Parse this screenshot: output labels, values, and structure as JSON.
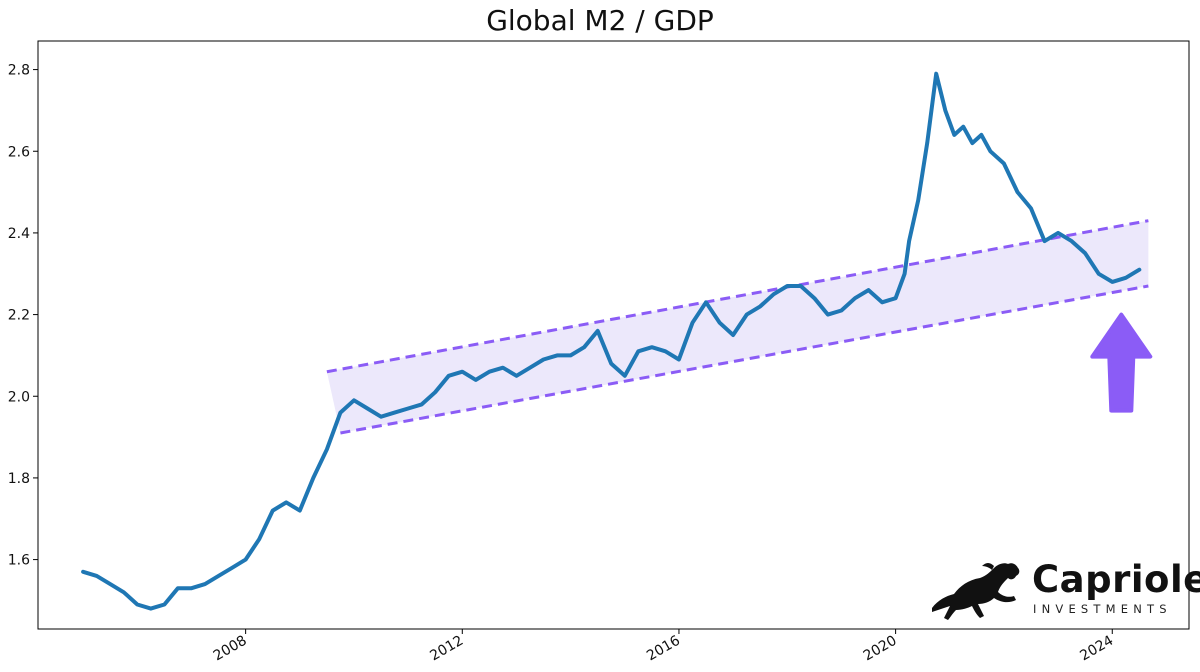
{
  "chart_data": {
    "type": "line",
    "title": "Global M2 / GDP",
    "xlabel": "",
    "ylabel": "",
    "x_tick_labels": [
      "2008",
      "2012",
      "2016",
      "2020",
      "2024"
    ],
    "y_tick_labels": [
      "1.6",
      "1.8",
      "2.0",
      "2.2",
      "2.4",
      "2.6",
      "2.8"
    ],
    "xlim": [
      "2004-03",
      "2025-06"
    ],
    "ylim": [
      1.43,
      2.87
    ],
    "grid": false,
    "series": [
      {
        "color": "#1f77b4",
        "points": [
          [
            "2005-01",
            1.57
          ],
          [
            "2005-04",
            1.56
          ],
          [
            "2005-07",
            1.54
          ],
          [
            "2005-10",
            1.52
          ],
          [
            "2006-01",
            1.49
          ],
          [
            "2006-04",
            1.48
          ],
          [
            "2006-07",
            1.49
          ],
          [
            "2006-10",
            1.53
          ],
          [
            "2007-01",
            1.53
          ],
          [
            "2007-04",
            1.54
          ],
          [
            "2007-07",
            1.56
          ],
          [
            "2007-10",
            1.58
          ],
          [
            "2008-01",
            1.6
          ],
          [
            "2008-04",
            1.65
          ],
          [
            "2008-07",
            1.72
          ],
          [
            "2008-10",
            1.74
          ],
          [
            "2009-01",
            1.72
          ],
          [
            "2009-04",
            1.8
          ],
          [
            "2009-07",
            1.87
          ],
          [
            "2009-10",
            1.96
          ],
          [
            "2010-01",
            1.99
          ],
          [
            "2010-04",
            1.97
          ],
          [
            "2010-07",
            1.95
          ],
          [
            "2010-10",
            1.96
          ],
          [
            "2011-01",
            1.97
          ],
          [
            "2011-04",
            1.98
          ],
          [
            "2011-07",
            2.01
          ],
          [
            "2011-10",
            2.05
          ],
          [
            "2012-01",
            2.06
          ],
          [
            "2012-04",
            2.04
          ],
          [
            "2012-07",
            2.06
          ],
          [
            "2012-10",
            2.07
          ],
          [
            "2013-01",
            2.05
          ],
          [
            "2013-04",
            2.07
          ],
          [
            "2013-07",
            2.09
          ],
          [
            "2013-10",
            2.1
          ],
          [
            "2014-01",
            2.1
          ],
          [
            "2014-04",
            2.12
          ],
          [
            "2014-07",
            2.16
          ],
          [
            "2014-10",
            2.08
          ],
          [
            "2015-01",
            2.05
          ],
          [
            "2015-04",
            2.11
          ],
          [
            "2015-07",
            2.12
          ],
          [
            "2015-10",
            2.11
          ],
          [
            "2016-01",
            2.09
          ],
          [
            "2016-04",
            2.18
          ],
          [
            "2016-07",
            2.23
          ],
          [
            "2016-10",
            2.18
          ],
          [
            "2017-01",
            2.15
          ],
          [
            "2017-04",
            2.2
          ],
          [
            "2017-07",
            2.22
          ],
          [
            "2017-10",
            2.25
          ],
          [
            "2018-01",
            2.27
          ],
          [
            "2018-04",
            2.27
          ],
          [
            "2018-07",
            2.24
          ],
          [
            "2018-10",
            2.2
          ],
          [
            "2019-01",
            2.21
          ],
          [
            "2019-04",
            2.24
          ],
          [
            "2019-07",
            2.26
          ],
          [
            "2019-10",
            2.23
          ],
          [
            "2020-01",
            2.24
          ],
          [
            "2020-03",
            2.3
          ],
          [
            "2020-04",
            2.38
          ],
          [
            "2020-06",
            2.48
          ],
          [
            "2020-08",
            2.62
          ],
          [
            "2020-10",
            2.79
          ],
          [
            "2020-12",
            2.7
          ],
          [
            "2021-02",
            2.64
          ],
          [
            "2021-04",
            2.66
          ],
          [
            "2021-06",
            2.62
          ],
          [
            "2021-08",
            2.64
          ],
          [
            "2021-10",
            2.6
          ],
          [
            "2022-01",
            2.57
          ],
          [
            "2022-04",
            2.5
          ],
          [
            "2022-07",
            2.46
          ],
          [
            "2022-10",
            2.38
          ],
          [
            "2023-01",
            2.4
          ],
          [
            "2023-04",
            2.38
          ],
          [
            "2023-07",
            2.35
          ],
          [
            "2023-10",
            2.3
          ],
          [
            "2024-01",
            2.28
          ],
          [
            "2024-04",
            2.29
          ],
          [
            "2024-07",
            2.31
          ]
        ]
      }
    ],
    "channel": {
      "color": "#8b5cf6",
      "fill": "#ece8fb",
      "upper": [
        [
          "2009-07",
          2.06
        ],
        [
          "2024-09",
          2.43
        ]
      ],
      "lower": [
        [
          "2009-10",
          1.91
        ],
        [
          "2024-09",
          2.27
        ]
      ]
    },
    "annotation": {
      "type": "arrow",
      "direction": "up",
      "color": "#8b5cf6",
      "points_to": [
        "2024-03",
        2.2
      ]
    }
  },
  "branding": {
    "logo_text": "Capriole",
    "logo_subtext": "INVESTMENTS",
    "logo_icon": "horse-icon"
  }
}
